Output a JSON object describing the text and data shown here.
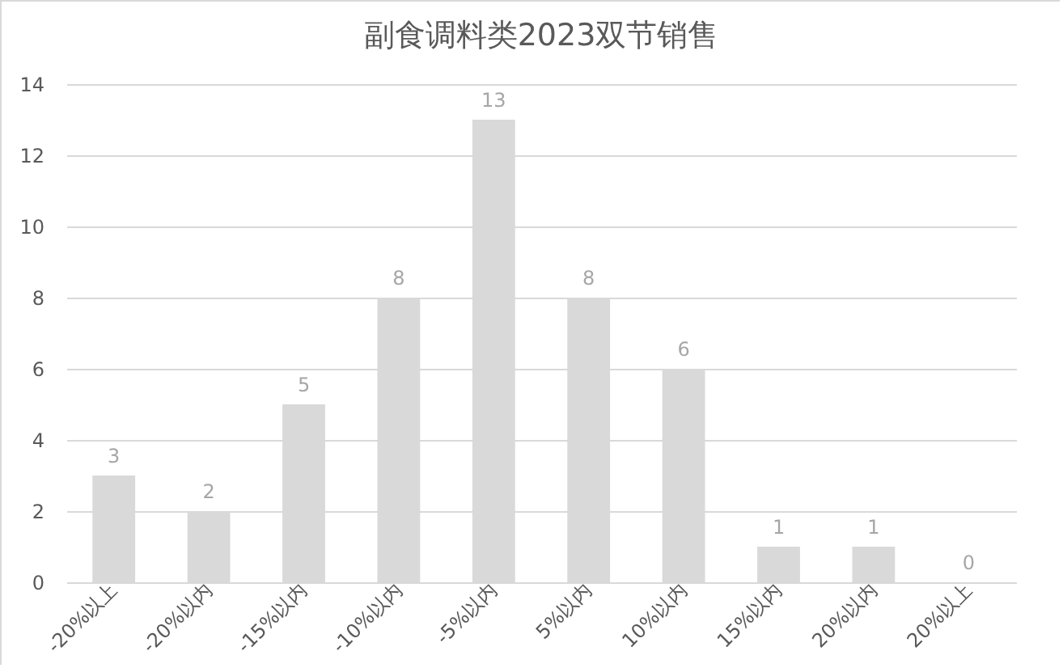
{
  "chart_data": {
    "type": "bar",
    "title": "副食调料类2023双节销售",
    "categories": [
      "-20%以上",
      "-20%以内",
      "-15%以内",
      "-10%以内",
      "-5%以内",
      "5%以内",
      "10%以内",
      "15%以内",
      "20%以内",
      "20%以上"
    ],
    "values": [
      3,
      2,
      5,
      8,
      13,
      8,
      6,
      1,
      1,
      0
    ],
    "color": "#d9d9d9",
    "ylim": [
      0,
      14
    ],
    "yticks": [
      0,
      2,
      4,
      6,
      8,
      10,
      12,
      14
    ],
    "grid": "y",
    "data_labels": true
  }
}
